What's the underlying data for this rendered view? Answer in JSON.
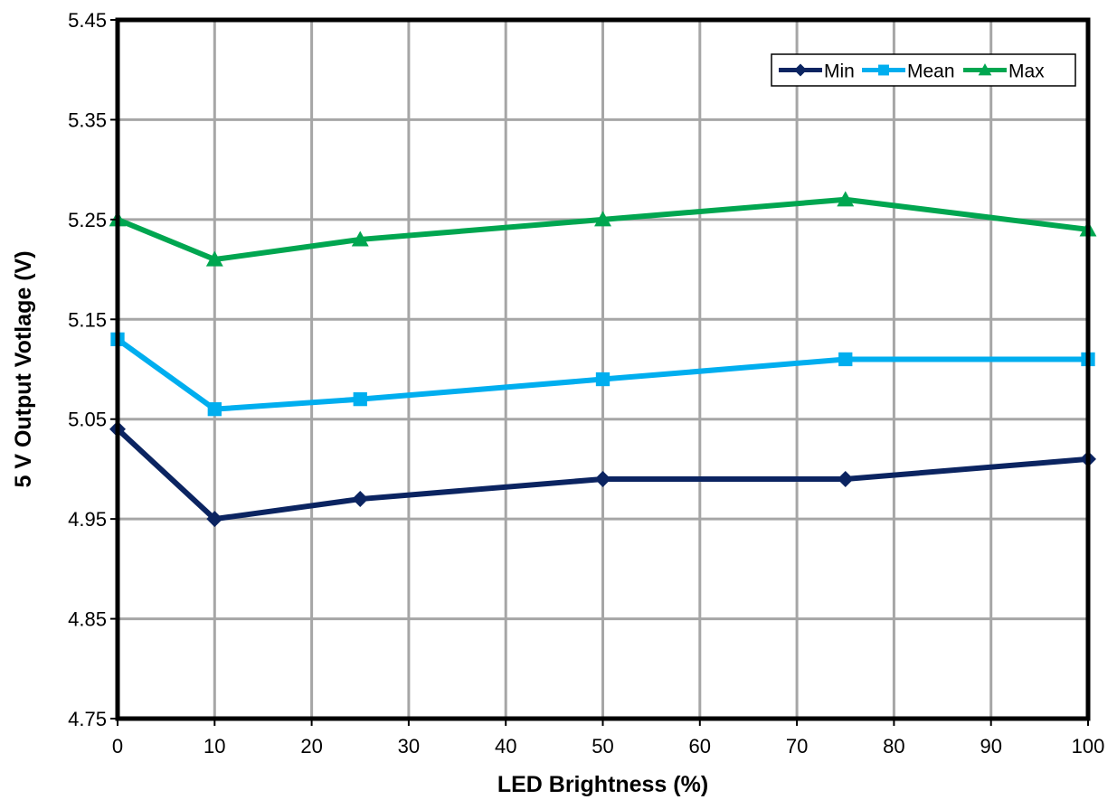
{
  "chart_data": {
    "type": "line",
    "title": "",
    "xlabel": "LED Brightness (%)",
    "ylabel": "5 V Output Votlage (V)",
    "xlim": [
      0,
      100
    ],
    "ylim": [
      4.75,
      5.45
    ],
    "xticks": [
      0,
      10,
      20,
      30,
      40,
      50,
      60,
      70,
      80,
      90,
      100
    ],
    "xtick_labels": [
      "0",
      "10",
      "20",
      "30",
      "40",
      "50",
      "60",
      "70",
      "80",
      "90",
      "100"
    ],
    "yticks": [
      4.75,
      4.85,
      4.95,
      5.05,
      5.15,
      5.25,
      5.35,
      5.45
    ],
    "ytick_labels": [
      "4.75",
      "4.85",
      "4.95",
      "5.05",
      "5.15",
      "5.25",
      "5.35",
      "5.45"
    ],
    "grid": true,
    "legend_position": "top-right",
    "x": [
      0,
      10,
      25,
      50,
      75,
      100
    ],
    "series": [
      {
        "name": "Min",
        "color": "#0b2461",
        "marker": "diamond",
        "values": [
          5.04,
          4.95,
          4.97,
          4.99,
          4.99,
          5.01
        ]
      },
      {
        "name": "Mean",
        "color": "#00aeef",
        "marker": "square",
        "values": [
          5.13,
          5.06,
          5.07,
          5.09,
          5.11,
          5.11
        ]
      },
      {
        "name": "Max",
        "color": "#00a650",
        "marker": "triangle",
        "values": [
          5.25,
          5.21,
          5.23,
          5.25,
          5.27,
          5.24
        ]
      }
    ]
  }
}
